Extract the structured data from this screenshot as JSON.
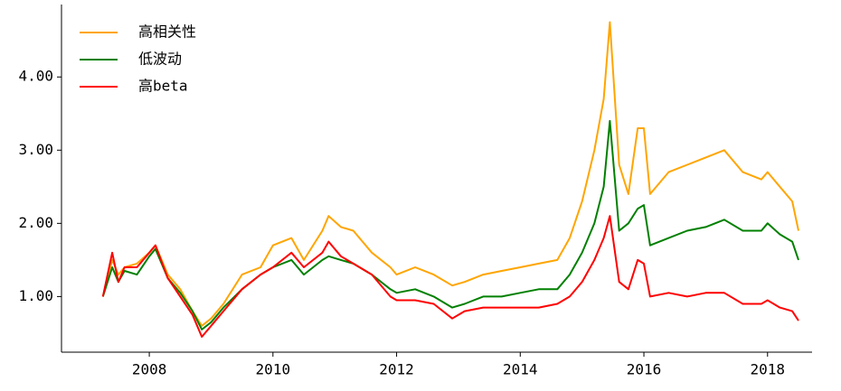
{
  "chart_data": {
    "type": "line",
    "x": [
      2007.25,
      2007.4,
      2007.5,
      2007.6,
      2007.8,
      2008.0,
      2008.1,
      2008.3,
      2008.5,
      2008.7,
      2008.85,
      2009.0,
      2009.2,
      2009.5,
      2009.8,
      2010.0,
      2010.3,
      2010.5,
      2010.8,
      2010.9,
      2011.1,
      2011.3,
      2011.6,
      2011.9,
      2012.0,
      2012.3,
      2012.6,
      2012.9,
      2013.1,
      2013.4,
      2013.7,
      2014.0,
      2014.3,
      2014.6,
      2014.8,
      2015.0,
      2015.2,
      2015.35,
      2015.45,
      2015.6,
      2015.75,
      2015.9,
      2016.0,
      2016.1,
      2016.4,
      2016.7,
      2017.0,
      2017.3,
      2017.6,
      2017.9,
      2018.0,
      2018.2,
      2018.4,
      2018.5
    ],
    "series": [
      {
        "name": "高相关性",
        "color": "orange",
        "values": [
          1.0,
          1.5,
          1.3,
          1.4,
          1.45,
          1.6,
          1.7,
          1.3,
          1.1,
          0.8,
          0.6,
          0.7,
          0.9,
          1.3,
          1.4,
          1.7,
          1.8,
          1.5,
          1.9,
          2.1,
          1.95,
          1.9,
          1.6,
          1.4,
          1.3,
          1.4,
          1.3,
          1.15,
          1.2,
          1.3,
          1.35,
          1.4,
          1.45,
          1.5,
          1.8,
          2.3,
          3.0,
          3.7,
          4.75,
          2.8,
          2.4,
          3.3,
          3.3,
          2.4,
          2.7,
          2.8,
          2.9,
          3.0,
          2.7,
          2.6,
          2.7,
          2.5,
          2.3,
          1.9
        ]
      },
      {
        "name": "低波动",
        "color": "green",
        "values": [
          1.0,
          1.4,
          1.2,
          1.35,
          1.3,
          1.55,
          1.65,
          1.25,
          1.05,
          0.8,
          0.55,
          0.65,
          0.85,
          1.1,
          1.3,
          1.4,
          1.5,
          1.3,
          1.5,
          1.55,
          1.5,
          1.45,
          1.3,
          1.1,
          1.05,
          1.1,
          1.0,
          0.85,
          0.9,
          1.0,
          1.0,
          1.05,
          1.1,
          1.1,
          1.3,
          1.6,
          2.0,
          2.5,
          3.4,
          1.9,
          2.0,
          2.2,
          2.25,
          1.7,
          1.8,
          1.9,
          1.95,
          2.05,
          1.9,
          1.9,
          2.0,
          1.85,
          1.75,
          1.5
        ]
      },
      {
        "name": "高beta",
        "color": "red",
        "values": [
          1.0,
          1.6,
          1.2,
          1.4,
          1.4,
          1.6,
          1.7,
          1.25,
          1.0,
          0.75,
          0.45,
          0.6,
          0.8,
          1.1,
          1.3,
          1.4,
          1.6,
          1.4,
          1.6,
          1.75,
          1.55,
          1.45,
          1.3,
          1.0,
          0.95,
          0.95,
          0.9,
          0.7,
          0.8,
          0.85,
          0.85,
          0.85,
          0.85,
          0.9,
          1.0,
          1.2,
          1.5,
          1.8,
          2.1,
          1.2,
          1.1,
          1.5,
          1.45,
          1.0,
          1.05,
          1.0,
          1.05,
          1.05,
          0.9,
          0.9,
          0.95,
          0.85,
          0.8,
          0.67
        ]
      }
    ],
    "xlim": [
      2006.58,
      2018.72
    ],
    "xticks": [
      2008,
      2010,
      2012,
      2014,
      2016,
      2018
    ],
    "ylim": [
      0.24,
      4.99
    ],
    "yticks": [
      {
        "value": 1,
        "label": "1.00"
      },
      {
        "value": 2,
        "label": "2.00"
      },
      {
        "value": 3,
        "label": "3.00"
      },
      {
        "value": 4,
        "label": "4.00"
      }
    ],
    "legend": "upper left"
  }
}
